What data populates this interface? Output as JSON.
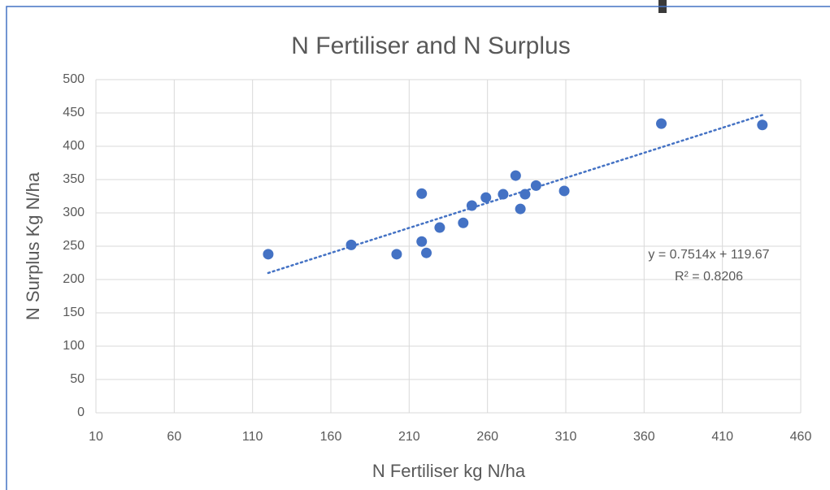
{
  "chart_data": {
    "type": "scatter",
    "title": "N Fertiliser and N Surplus",
    "x_label": "N Fertiliser kg N/ha",
    "y_label": "N Surplus  Kg N/ha",
    "series": [
      {
        "name": "N Surplus",
        "color": "#4472c4",
        "x": [
          120,
          173,
          202,
          218,
          218,
          221,
          229.5,
          244.5,
          250,
          259,
          270,
          278,
          281,
          284,
          291,
          309,
          371,
          435.5
        ],
        "values": [
          238,
          252,
          238,
          329,
          257,
          240,
          278,
          285,
          311,
          323,
          328,
          356,
          306,
          328,
          341,
          333,
          434,
          432
        ]
      }
    ],
    "trendline": {
      "slope": 0.7514,
      "intercept": 119.67,
      "equation": "y = 0.7514x + 119.67",
      "r2": "R² = 0.8206"
    },
    "xlim": [
      10,
      460
    ],
    "xticks": [
      10,
      60,
      110,
      160,
      210,
      260,
      310,
      360,
      410,
      460
    ],
    "ylim": [
      0,
      500
    ],
    "yticks": [
      0,
      50,
      100,
      150,
      200,
      250,
      300,
      350,
      400,
      450,
      500
    ],
    "grid": true
  }
}
